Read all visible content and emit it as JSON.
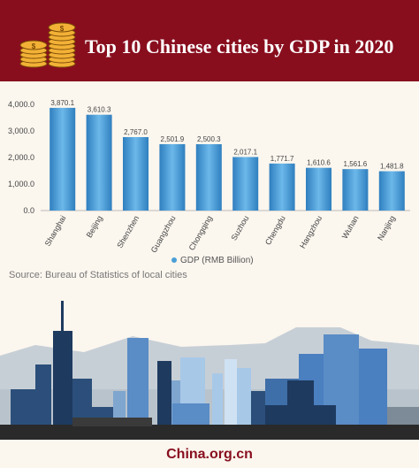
{
  "header": {
    "title": "Top 10 Chinese cities by GDP in 2020",
    "icon": "coin-stack-icon"
  },
  "chart_data": {
    "type": "bar",
    "title": "Top 10 Chinese cities by GDP in 2020",
    "categories": [
      "Shanghai",
      "Beijing",
      "Shenzhen",
      "Guangzhou",
      "Chongqing",
      "Suzhou",
      "Chengdu",
      "Hangzhou",
      "Wuhan",
      "Nanjing"
    ],
    "values": [
      3870.1,
      3610.3,
      2767.0,
      2501.9,
      2500.3,
      2017.1,
      1771.7,
      1610.6,
      1561.6,
      1481.8
    ],
    "value_labels": [
      "3,870.1",
      "3,610.3",
      "2,767.0",
      "2,501.9",
      "2,500.3",
      "2,017.1",
      "1,771.7",
      "1,610.6",
      "1,561.6",
      "1,481.8"
    ],
    "yticks": [
      "0.0",
      "1,000.0",
      "2,000.0",
      "3,000.0",
      "4,000.0"
    ],
    "ylim": [
      0,
      4000
    ],
    "grid": false,
    "legend": "bottom",
    "series": [
      {
        "name": "GDP (RMB Billion)"
      }
    ],
    "bar_color": "#4a9fd8"
  },
  "source": "Source: Bureau of Statistics of local cities",
  "footer": "China.org.cn",
  "colors": {
    "header_bg": "#880e1e",
    "background": "#fbf6ee",
    "bar": "#4a9fd8"
  }
}
